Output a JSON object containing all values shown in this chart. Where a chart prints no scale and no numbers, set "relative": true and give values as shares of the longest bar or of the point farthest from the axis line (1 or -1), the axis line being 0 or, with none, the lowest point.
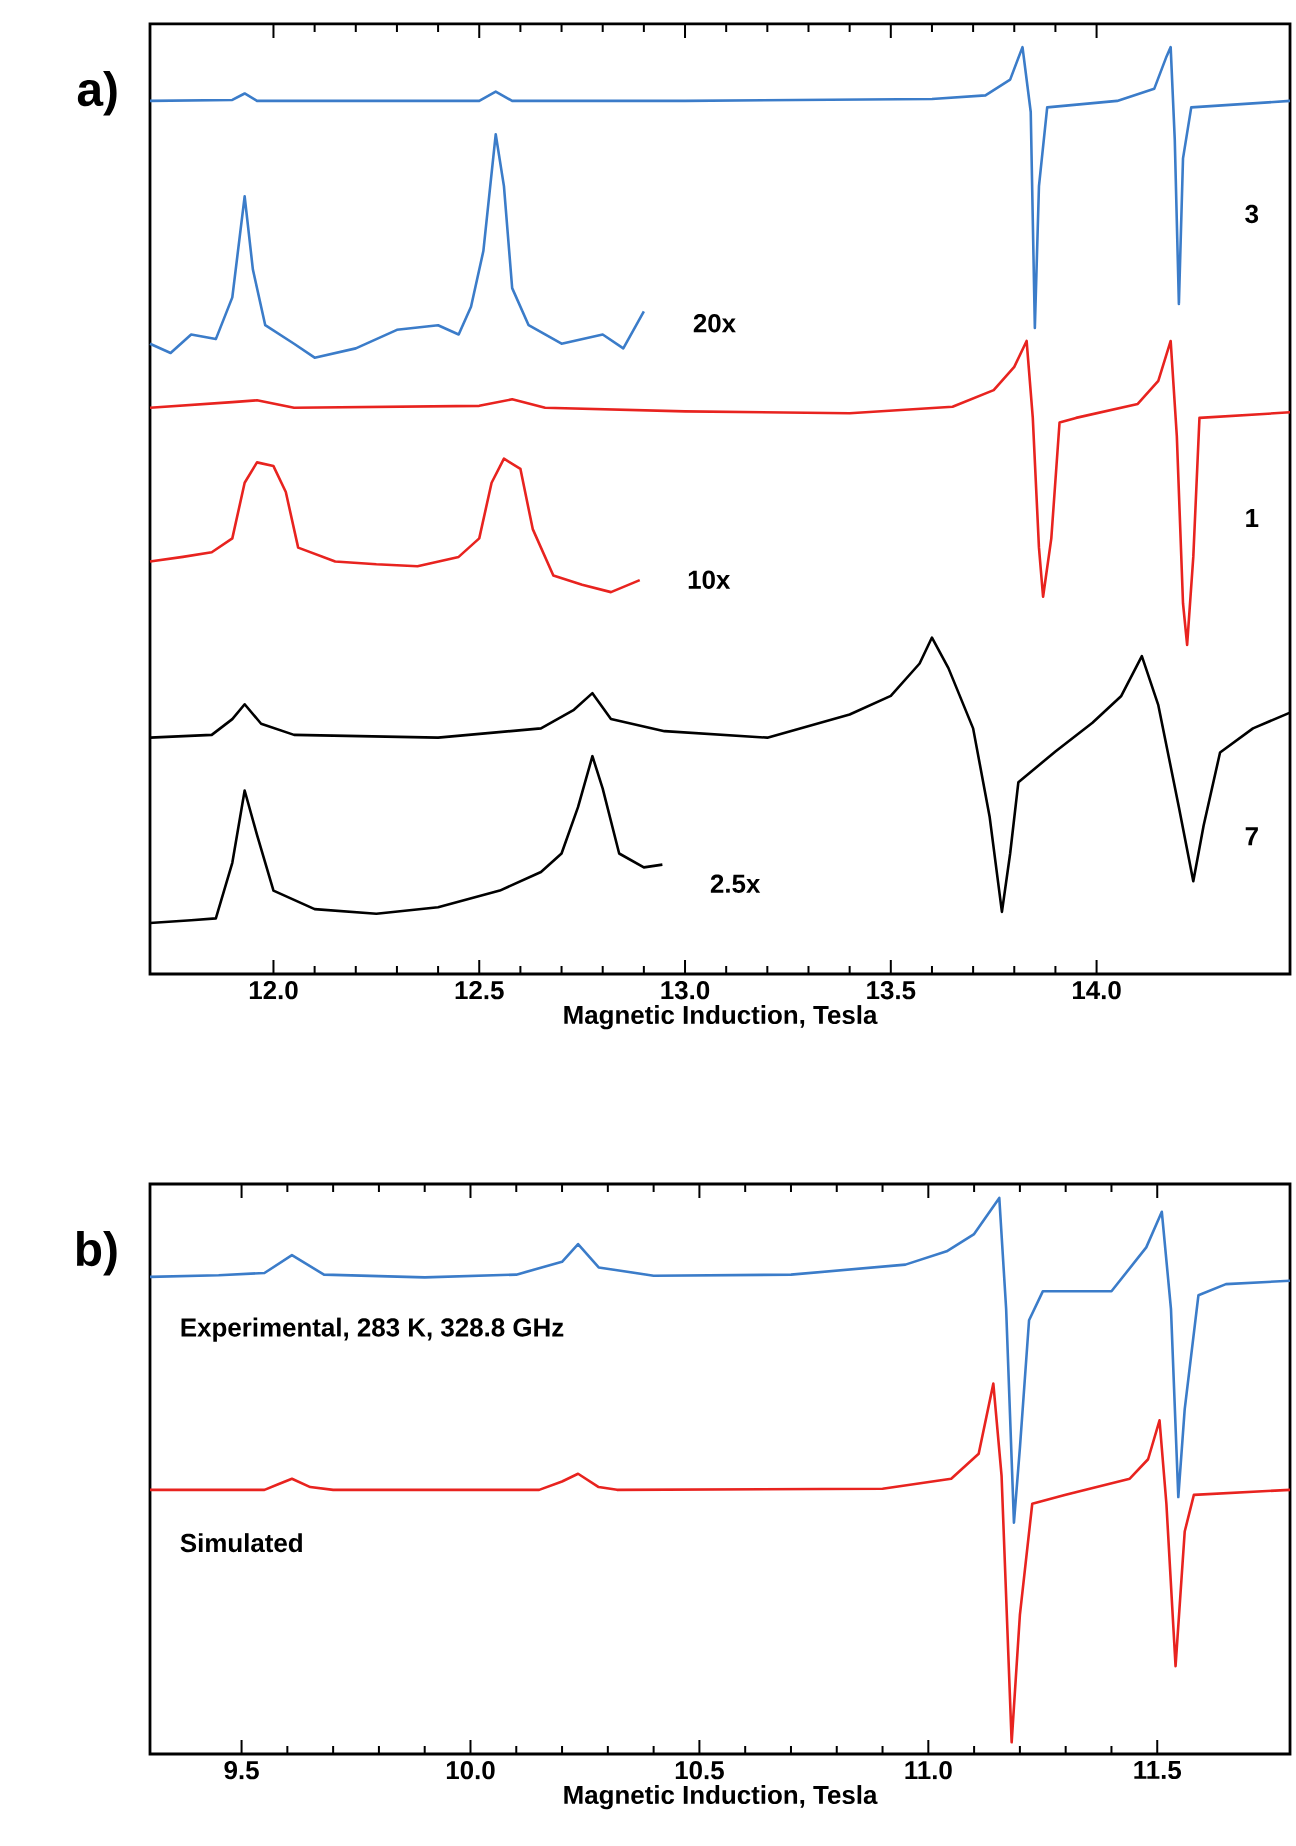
{
  "chart_data": [
    {
      "type": "line",
      "title": "a)",
      "xlabel": "Magnetic Induction, Tesla",
      "relative": true,
      "xlim": [
        11.7,
        14.47
      ],
      "xticks": [
        {
          "value": 12,
          "label": "12.0"
        },
        12.5,
        {
          "value": 13,
          "label": "13.0"
        },
        13.5,
        {
          "value": 14,
          "label": "14.0"
        }
      ],
      "series": [
        {
          "color": "#3b7cc9",
          "x": [
            11.7,
            11.9,
            11.93,
            11.96,
            12.5,
            12.54,
            12.58,
            13.0,
            13.6,
            13.73,
            13.79,
            13.82,
            13.84,
            13.85,
            13.86,
            13.88,
            14.05,
            14.14,
            14.17,
            14.18,
            14.19,
            14.2,
            14.21,
            14.23,
            14.47
          ],
          "values": [
            0.942,
            0.943,
            0.95,
            0.942,
            0.942,
            0.952,
            0.942,
            0.942,
            0.944,
            0.948,
            0.965,
            1.0,
            0.93,
            0.697,
            0.85,
            0.935,
            0.942,
            0.955,
            0.99,
            1.0,
            0.9,
            0.723,
            0.88,
            0.935,
            0.942
          ]
        },
        {
          "color": "#3b7cc9",
          "x": [
            11.7,
            11.75,
            11.8,
            11.86,
            11.9,
            11.93,
            11.95,
            11.98,
            12.05,
            12.1,
            12.2,
            12.3,
            12.4,
            12.45,
            12.48,
            12.51,
            12.54,
            12.56,
            12.58,
            12.62,
            12.7,
            12.8,
            12.85,
            12.9
          ],
          "values": [
            0.68,
            0.67,
            0.69,
            0.685,
            0.73,
            0.839,
            0.76,
            0.7,
            0.68,
            0.665,
            0.675,
            0.695,
            0.7,
            0.69,
            0.72,
            0.78,
            0.906,
            0.85,
            0.74,
            0.7,
            0.68,
            0.69,
            0.675,
            0.715
          ]
        },
        {
          "color": "#e8231f",
          "x": [
            11.7,
            11.9,
            11.96,
            12.05,
            12.5,
            12.58,
            12.66,
            13.0,
            13.4,
            13.65,
            13.75,
            13.8,
            13.83,
            13.845,
            13.86,
            13.87,
            13.89,
            13.91,
            13.95,
            14.1,
            14.15,
            14.18,
            14.195,
            14.21,
            14.22,
            14.235,
            14.25,
            14.47
          ],
          "values": [
            0.611,
            0.617,
            0.619,
            0.611,
            0.613,
            0.62,
            0.611,
            0.607,
            0.605,
            0.612,
            0.63,
            0.655,
            0.683,
            0.6,
            0.46,
            0.407,
            0.47,
            0.595,
            0.6,
            0.615,
            0.64,
            0.683,
            0.58,
            0.4,
            0.355,
            0.45,
            0.6,
            0.606
          ]
        },
        {
          "color": "#e8231f",
          "x": [
            11.7,
            11.78,
            11.85,
            11.9,
            11.93,
            11.96,
            12.0,
            12.03,
            12.06,
            12.15,
            12.25,
            12.35,
            12.45,
            12.5,
            12.53,
            12.56,
            12.6,
            12.63,
            12.68,
            12.75,
            12.82,
            12.89
          ],
          "values": [
            0.445,
            0.45,
            0.455,
            0.47,
            0.53,
            0.552,
            0.548,
            0.52,
            0.46,
            0.445,
            0.442,
            0.44,
            0.45,
            0.47,
            0.53,
            0.556,
            0.545,
            0.48,
            0.43,
            0.42,
            0.412,
            0.425
          ]
        },
        {
          "color": "#000000",
          "x": [
            11.7,
            11.85,
            11.9,
            11.93,
            11.97,
            12.05,
            12.4,
            12.65,
            12.73,
            12.775,
            12.82,
            12.95,
            13.2,
            13.4,
            13.5,
            13.57,
            13.6,
            13.64,
            13.7,
            13.74,
            13.77,
            13.79,
            13.81,
            13.9,
            13.99,
            14.06,
            14.11,
            14.15,
            14.2,
            14.235,
            14.26,
            14.3,
            14.38,
            14.47
          ],
          "values": [
            0.255,
            0.258,
            0.275,
            0.291,
            0.27,
            0.258,
            0.255,
            0.265,
            0.285,
            0.303,
            0.275,
            0.262,
            0.255,
            0.28,
            0.3,
            0.335,
            0.363,
            0.33,
            0.265,
            0.17,
            0.067,
            0.13,
            0.207,
            0.24,
            0.271,
            0.3,
            0.343,
            0.29,
            0.18,
            0.1,
            0.16,
            0.239,
            0.265,
            0.282
          ]
        },
        {
          "color": "#000000",
          "x": [
            11.7,
            11.8,
            11.86,
            11.9,
            11.93,
            11.96,
            12.0,
            12.1,
            12.25,
            12.4,
            12.55,
            12.65,
            12.7,
            12.74,
            12.775,
            12.8,
            12.84,
            12.9,
            12.945
          ],
          "values": [
            0.055,
            0.058,
            0.06,
            0.12,
            0.198,
            0.15,
            0.09,
            0.07,
            0.065,
            0.072,
            0.09,
            0.11,
            0.13,
            0.18,
            0.235,
            0.2,
            0.13,
            0.115,
            0.118
          ]
        }
      ],
      "annotations": [
        "3",
        "20x",
        "1",
        "10x",
        "7",
        "2.5x"
      ]
    },
    {
      "type": "line",
      "title": "b)",
      "xlabel": "Magnetic Induction, Tesla",
      "relative": true,
      "xlim": [
        9.3,
        11.79
      ],
      "xticks": [
        9.5,
        {
          "value": 10,
          "label": "10.0"
        },
        10.5,
        {
          "value": 11,
          "label": "11.0"
        },
        11.5
      ],
      "series": [
        {
          "name": "Experimental, 283 K, 328.8 GHz",
          "color": "#3b7cc9",
          "x": [
            9.3,
            9.45,
            9.55,
            9.61,
            9.68,
            9.9,
            10.1,
            10.2,
            10.235,
            10.28,
            10.4,
            10.7,
            10.95,
            11.04,
            11.1,
            11.155,
            11.17,
            11.187,
            11.2,
            11.22,
            11.25,
            11.4,
            11.476,
            11.51,
            11.53,
            11.546,
            11.56,
            11.59,
            11.65,
            11.79
          ],
          "values": [
            0.858,
            0.861,
            0.865,
            0.897,
            0.862,
            0.857,
            0.862,
            0.885,
            0.917,
            0.875,
            0.86,
            0.862,
            0.88,
            0.904,
            0.935,
            1.0,
            0.8,
            0.416,
            0.55,
            0.78,
            0.832,
            0.832,
            0.911,
            0.975,
            0.8,
            0.462,
            0.62,
            0.825,
            0.845,
            0.851
          ]
        },
        {
          "name": "Simulated",
          "color": "#e8231f",
          "x": [
            9.3,
            9.55,
            9.58,
            9.61,
            9.65,
            9.7,
            10.15,
            10.2,
            10.235,
            10.28,
            10.32,
            10.9,
            11.05,
            11.11,
            11.142,
            11.16,
            11.182,
            11.2,
            11.227,
            11.3,
            11.44,
            11.48,
            11.505,
            11.52,
            11.54,
            11.56,
            11.58,
            11.79
          ],
          "values": [
            0.475,
            0.475,
            0.485,
            0.495,
            0.48,
            0.475,
            0.475,
            0.49,
            0.504,
            0.48,
            0.475,
            0.477,
            0.495,
            0.54,
            0.666,
            0.5,
            0.021,
            0.25,
            0.45,
            0.466,
            0.495,
            0.53,
            0.6,
            0.45,
            0.158,
            0.4,
            0.466,
            0.475
          ]
        }
      ]
    }
  ]
}
